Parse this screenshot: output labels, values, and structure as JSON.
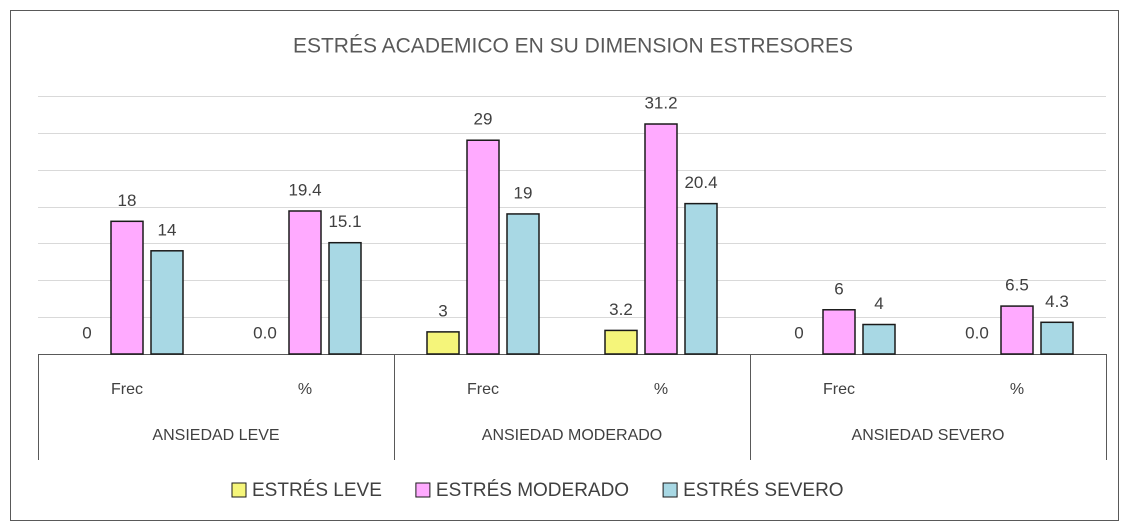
{
  "chart_data": {
    "type": "bar",
    "title": "ESTRÉS ACADEMICO EN SU DIMENSION ESTRESORES",
    "categories": [
      "Frec",
      "%",
      "Frec",
      "%",
      "Frec",
      "%"
    ],
    "groups": [
      "ANSIEDAD LEVE",
      "ANSIEDAD MODERADO",
      "ANSIEDAD SEVERO"
    ],
    "series": [
      {
        "name": "ESTRÉS LEVE",
        "color": "#f5f57a",
        "values": [
          0,
          0,
          3,
          3.2,
          0,
          0
        ],
        "value_labels": [
          "0",
          "0.0",
          "3",
          "3.2",
          "0",
          "0.0"
        ]
      },
      {
        "name": "ESTRÉS MODERADO",
        "color": "#ffaaff",
        "values": [
          18,
          19.4,
          29,
          31.2,
          6,
          6.5
        ]
      },
      {
        "name": "ESTRÉS SEVERO",
        "color": "#a8d8e4",
        "values": [
          14,
          15.1,
          19,
          20.4,
          4,
          4.3
        ]
      }
    ],
    "ylim": [
      0,
      35
    ],
    "yticks": [
      0,
      5,
      10,
      15,
      20,
      25,
      30,
      35
    ],
    "grid": true,
    "legend": "bottom"
  }
}
